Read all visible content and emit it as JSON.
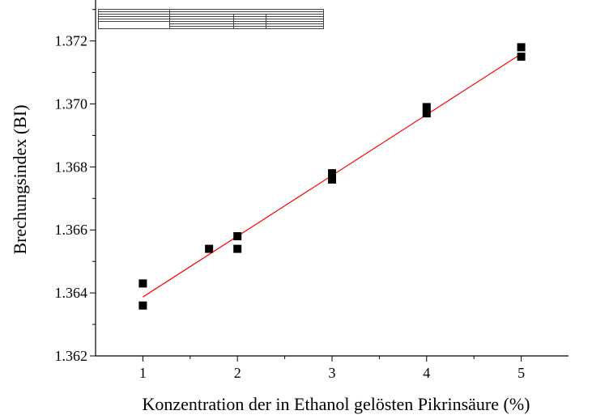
{
  "chart_data": {
    "type": "scatter",
    "x_label": "Konzentration der in Ethanol gelösten Pikrinsäure (%)",
    "y_label": "Brechungsindex (BI)",
    "x": [
      1,
      1,
      1.7,
      2,
      2,
      3,
      3,
      4,
      4,
      5,
      5
    ],
    "values": [
      1.3643,
      1.3636,
      1.3654,
      1.3658,
      1.3654,
      1.3678,
      1.3676,
      1.3699,
      1.3697,
      1.3718,
      1.3715
    ],
    "color": "#000000",
    "fit": {
      "x": [
        1,
        5
      ],
      "values": [
        1.36387,
        1.37159
      ],
      "color": "#ff0000"
    },
    "xlim": [
      0.5,
      5.5
    ],
    "ylim": [
      1.362,
      1.3733
    ],
    "xticks": [
      1,
      2,
      3,
      4,
      5
    ],
    "yticks": [
      {
        "value": 1.362,
        "label": "1.362"
      },
      {
        "value": 1.364,
        "label": "1.364"
      },
      {
        "value": 1.366,
        "label": "1.366"
      },
      {
        "value": 1.368,
        "label": "1.368"
      },
      {
        "value": 1.37,
        "label": "1.370"
      },
      {
        "value": 1.372,
        "label": "1.372"
      }
    ],
    "xminorticks": [
      1.5,
      2.5,
      3.5,
      4.5
    ],
    "yminorticks": [
      1.363,
      1.365,
      1.367,
      1.369,
      1.371,
      1.373
    ],
    "table": {
      "rows": [
        [
          "Gleichung",
          "y = a + b*x"
        ],
        [
          "Gewichtung",
          "Keine Gewichtung"
        ],
        [
          "Fehler der Summe der Quadrate",
          "5.74943E-7"
        ],
        [
          "Pearson R",
          "0.99643"
        ],
        [
          "Kor. R-Quadrat",
          "0.99208"
        ],
        [
          "Wert",
          "Standardfehler"
        ],
        [
          "refraction index",
          "Schnittpunkt mit der Y-Achse",
          "1.36194",
          "1.74476E-4"
        ],
        [
          "Steigung",
          "0.00193",
          "5.44634E-5"
        ]
      ]
    }
  }
}
